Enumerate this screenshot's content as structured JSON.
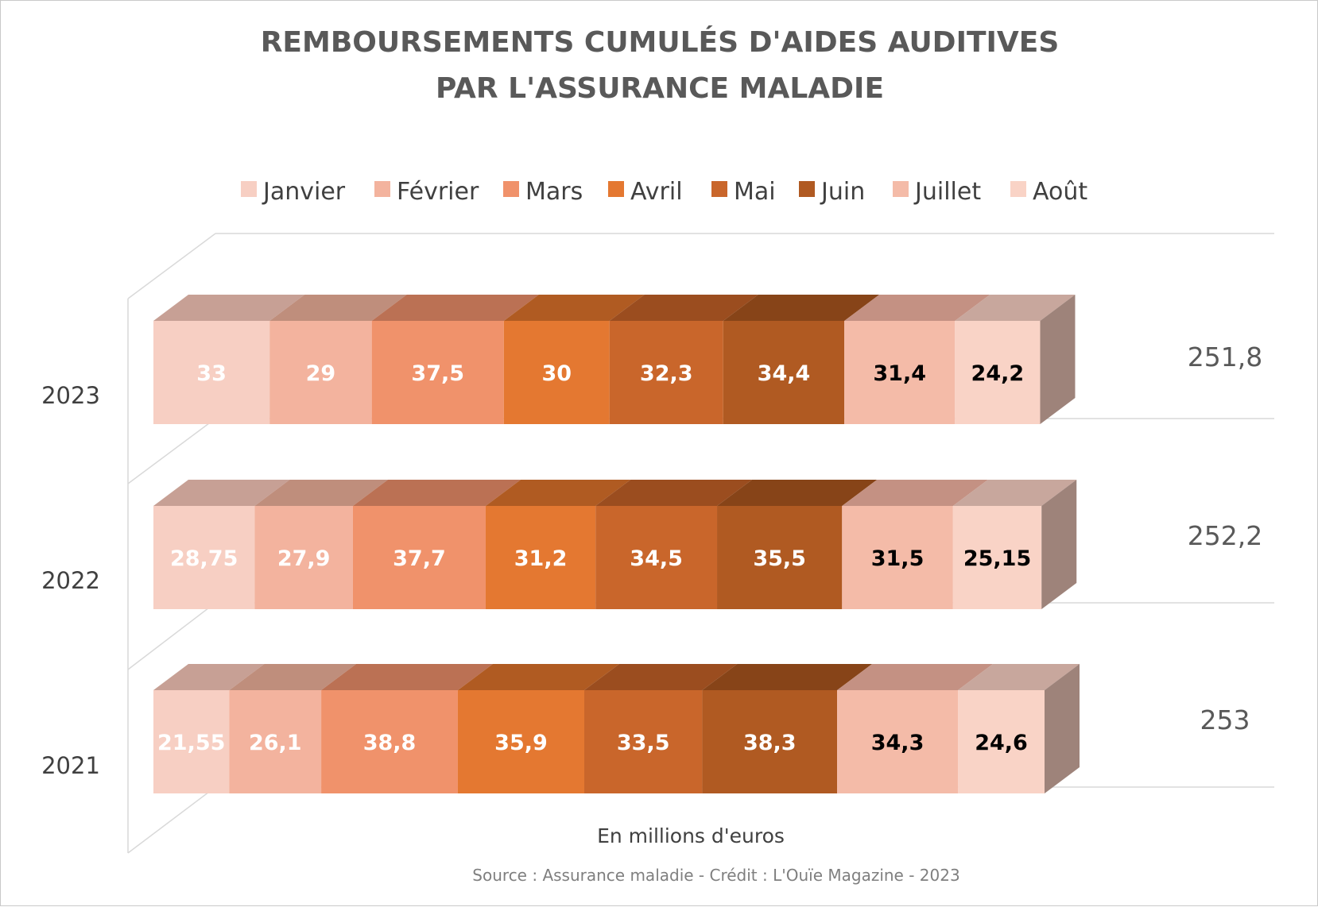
{
  "chart_data": {
    "type": "bar",
    "orientation": "horizontal-stacked-3d",
    "title_line1": "Remboursements cumulés d'aides auditives",
    "title_line2": "par l'Assurance maladie",
    "unit_label": "En millions d'euros",
    "source": "Source : Assurance maladie - Crédit : L'Ouïe Magazine - 2023",
    "legend_position": "top",
    "series": [
      {
        "name": "Janvier",
        "color": "#f7cfc3",
        "top": "#c7a095",
        "dark_text": false,
        "values": [
          33,
          28.75,
          21.55
        ],
        "labels": [
          "33",
          "28,75",
          "21,55"
        ]
      },
      {
        "name": "Février",
        "color": "#f3b39e",
        "top": "#bf8e7c",
        "dark_text": false,
        "values": [
          29,
          27.9,
          26.1
        ],
        "labels": [
          "29",
          "27,9",
          "26,1"
        ]
      },
      {
        "name": "Mars",
        "color": "#f0926b",
        "top": "#bb7154",
        "dark_text": false,
        "values": [
          37.5,
          37.7,
          38.8
        ],
        "labels": [
          "37,5",
          "37,7",
          "38,8"
        ]
      },
      {
        "name": "Avril",
        "color": "#e47831",
        "top": "#b05b22",
        "dark_text": false,
        "values": [
          30,
          31.2,
          35.9
        ],
        "labels": [
          "30",
          "31,2",
          "35,9"
        ]
      },
      {
        "name": "Mai",
        "color": "#c9662b",
        "top": "#9b4d1f",
        "dark_text": false,
        "values": [
          32.3,
          34.5,
          33.5
        ],
        "labels": [
          "32,3",
          "34,5",
          "33,5"
        ]
      },
      {
        "name": "Juin",
        "color": "#b05a22",
        "top": "#874418",
        "dark_text": false,
        "values": [
          34.4,
          35.5,
          38.3
        ],
        "labels": [
          "34,4",
          "35,5",
          "38,3"
        ]
      },
      {
        "name": "Juillet",
        "color": "#f4bba8",
        "top": "#c49183",
        "dark_text": true,
        "values": [
          31.4,
          31.5,
          34.3
        ],
        "labels": [
          "31,4",
          "31,5",
          "34,3"
        ]
      },
      {
        "name": "Août",
        "color": "#f9d3c6",
        "top": "#c8a79d",
        "dark_text": true,
        "values": [
          24.2,
          25.15,
          24.6
        ],
        "labels": [
          "24,2",
          "25,15",
          "24,6"
        ]
      }
    ],
    "categories": [
      "2023",
      "2022",
      "2021"
    ],
    "totals": [
      251.8,
      252.2,
      253
    ],
    "total_labels": [
      "251,8",
      "252,2",
      "253"
    ],
    "side_color": "#9e837a",
    "grid": false
  }
}
